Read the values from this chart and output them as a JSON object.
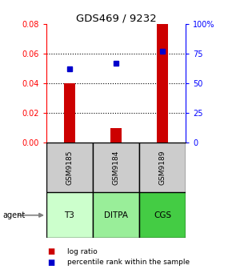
{
  "title": "GDS469 / 9232",
  "samples": [
    "GSM9185",
    "GSM9184",
    "GSM9189"
  ],
  "agents": [
    "T3",
    "DITPA",
    "CGS"
  ],
  "log_ratios": [
    0.04,
    0.01,
    0.08
  ],
  "percentile_ranks": [
    62,
    67,
    77
  ],
  "ylim_left": [
    0,
    0.08
  ],
  "ylim_right": [
    0,
    100
  ],
  "yticks_left": [
    0,
    0.02,
    0.04,
    0.06,
    0.08
  ],
  "yticks_right": [
    0,
    25,
    50,
    75,
    100
  ],
  "bar_color": "#cc0000",
  "dot_color": "#0000cc",
  "agent_colors": [
    "#ccffcc",
    "#99ee99",
    "#44cc44"
  ],
  "sample_bg": "#cccccc",
  "bar_width": 0.25
}
